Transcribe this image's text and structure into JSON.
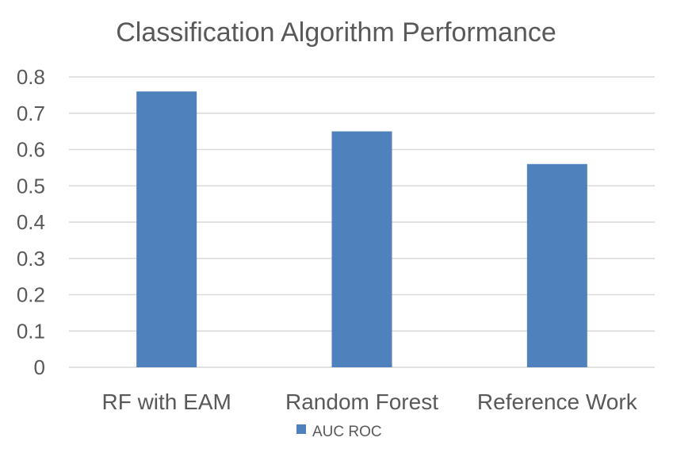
{
  "chart_data": {
    "type": "bar",
    "title": "Classification Algorithm Performance",
    "categories": [
      "RF with EAM",
      "Random Forest",
      "Reference Work"
    ],
    "series": [
      {
        "name": "AUC ROC",
        "values": [
          0.76,
          0.65,
          0.56
        ],
        "color": "#4F81BD"
      }
    ],
    "ylim": [
      0,
      0.8
    ],
    "yticks": [
      "0",
      "0.1",
      "0.2",
      "0.3",
      "0.4",
      "0.5",
      "0.6",
      "0.7",
      "0.8"
    ],
    "grid": true,
    "legend": "bottom",
    "colors": {
      "gridline": "#D9D9D9",
      "text": "#595959"
    }
  }
}
